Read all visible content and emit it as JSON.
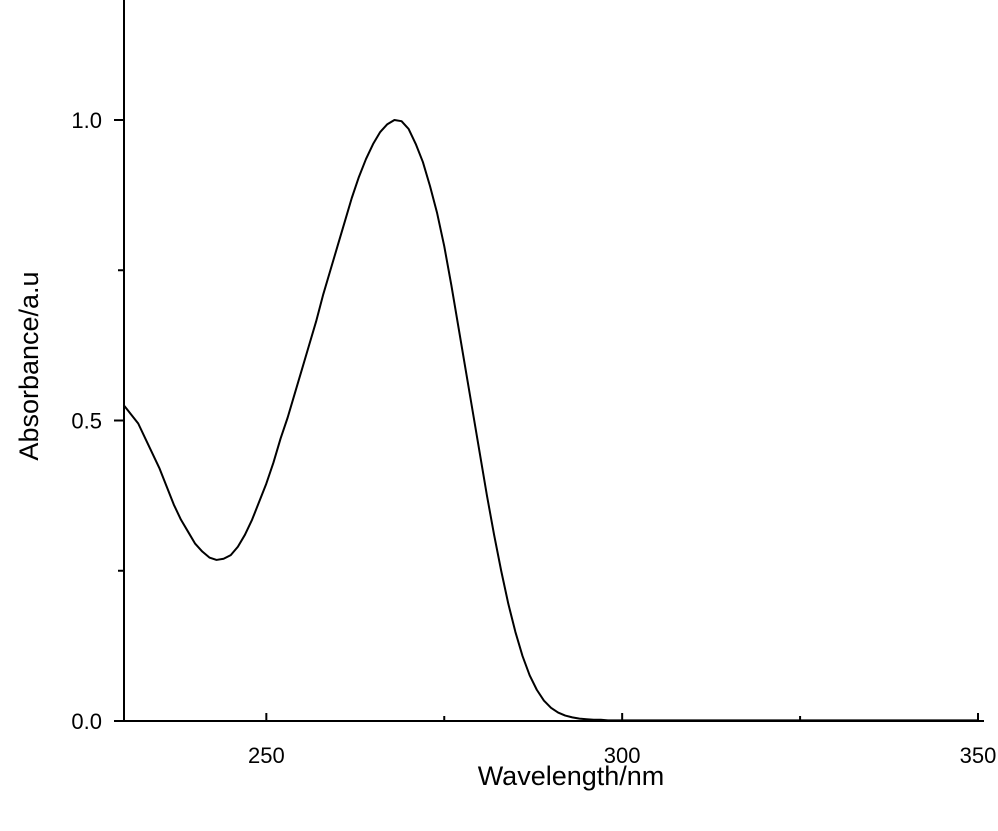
{
  "chart_data": {
    "type": "line",
    "title": "",
    "xlabel": "Wavelength/nm",
    "ylabel": "Absorbance/a.u",
    "xlim": [
      230,
      350
    ],
    "ylim": [
      0,
      1.0
    ],
    "x_ticks": [
      250,
      300,
      350
    ],
    "x_tick_labels": [
      "250",
      "300",
      "350"
    ],
    "y_ticks": [
      0.0,
      0.5,
      1.0
    ],
    "y_tick_labels": [
      "0.0",
      "0.5",
      "1.0"
    ],
    "grid": false,
    "legend": "none",
    "series": [
      {
        "color": "#000000",
        "x": [
          230,
          231,
          232,
          233,
          234,
          235,
          236,
          237,
          238,
          239,
          240,
          241,
          242,
          243,
          244,
          245,
          246,
          247,
          248,
          249,
          250,
          251,
          252,
          253,
          254,
          255,
          256,
          257,
          258,
          259,
          260,
          261,
          262,
          263,
          264,
          265,
          266,
          267,
          268,
          269,
          270,
          271,
          272,
          273,
          274,
          275,
          276,
          277,
          278,
          279,
          280,
          281,
          282,
          283,
          284,
          285,
          286,
          287,
          288,
          289,
          290,
          291,
          292,
          293,
          294,
          295,
          296,
          297,
          298,
          299,
          300,
          302,
          304,
          306,
          308,
          310,
          315,
          320,
          325,
          330,
          335,
          340,
          345,
          350
        ],
        "y": [
          0.525,
          0.51,
          0.495,
          0.47,
          0.445,
          0.42,
          0.39,
          0.36,
          0.335,
          0.315,
          0.295,
          0.282,
          0.272,
          0.268,
          0.27,
          0.276,
          0.29,
          0.31,
          0.335,
          0.365,
          0.395,
          0.43,
          0.47,
          0.505,
          0.545,
          0.585,
          0.625,
          0.665,
          0.71,
          0.75,
          0.79,
          0.83,
          0.87,
          0.905,
          0.935,
          0.96,
          0.98,
          0.993,
          1.0,
          0.998,
          0.985,
          0.96,
          0.93,
          0.89,
          0.845,
          0.79,
          0.725,
          0.655,
          0.585,
          0.515,
          0.445,
          0.375,
          0.31,
          0.25,
          0.195,
          0.148,
          0.108,
          0.076,
          0.052,
          0.034,
          0.022,
          0.014,
          0.009,
          0.006,
          0.004,
          0.003,
          0.002,
          0.002,
          0.001,
          0.001,
          0.001,
          0.001,
          0.001,
          0.001,
          0.001,
          0.001,
          0.001,
          0.001,
          0.001,
          0.001,
          0.001,
          0.001,
          0.001,
          0.001
        ]
      }
    ]
  }
}
